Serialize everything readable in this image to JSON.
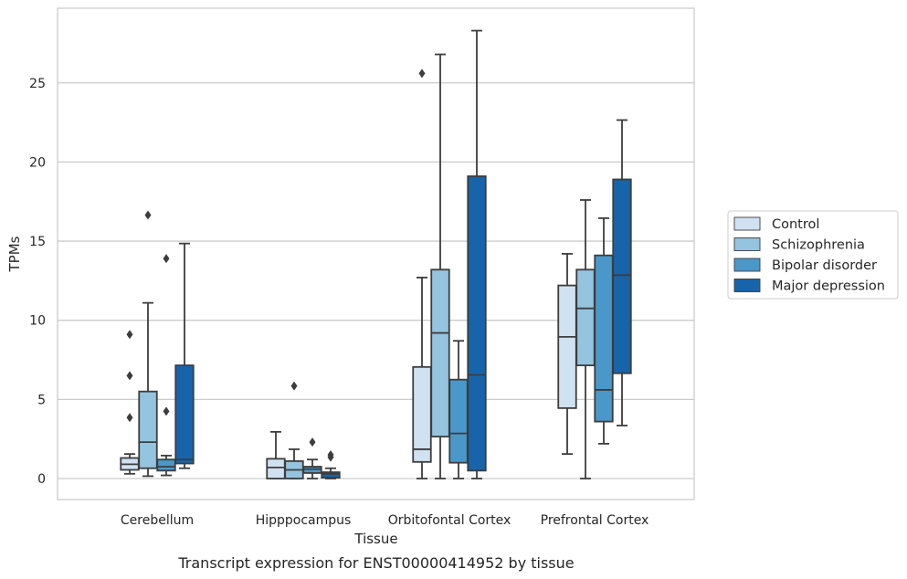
{
  "chart_data": {
    "type": "box",
    "caption": "Transcript expression for ENST00000414952 by tissue",
    "xlabel": "Tissue",
    "ylabel": "TPMs",
    "ylim": [
      -1.4,
      29.4
    ],
    "yticks": [
      0,
      5,
      10,
      15,
      20,
      25
    ],
    "grid": "horizontal",
    "legend_position": "right",
    "categories": [
      "Cerebellum",
      "Hipppocampus",
      "Orbitofontal Cortex",
      "Prefrontal Cortex"
    ],
    "series": [
      {
        "name": "Control",
        "color": "#d0e1f2",
        "boxes": [
          {
            "whisker_low": 0.3,
            "q1": 0.55,
            "median": 0.9,
            "q3": 1.3,
            "whisker_high": 1.55,
            "outliers": [
              9.1,
              6.5,
              3.85
            ]
          },
          {
            "whisker_low": 0.0,
            "q1": 0.0,
            "median": 0.7,
            "q3": 1.25,
            "whisker_high": 2.95,
            "outliers": []
          },
          {
            "whisker_low": 0.0,
            "q1": 1.05,
            "median": 1.85,
            "q3": 7.05,
            "whisker_high": 12.7,
            "outliers": [
              25.6
            ]
          },
          {
            "whisker_low": 1.55,
            "q1": 4.45,
            "median": 8.95,
            "q3": 12.2,
            "whisker_high": 14.2,
            "outliers": []
          }
        ]
      },
      {
        "name": "Schizophrenia",
        "color": "#94c4df",
        "boxes": [
          {
            "whisker_low": 0.15,
            "q1": 0.65,
            "median": 2.3,
            "q3": 5.5,
            "whisker_high": 11.1,
            "outliers": [
              16.65
            ]
          },
          {
            "whisker_low": 0.0,
            "q1": 0.0,
            "median": 0.55,
            "q3": 1.1,
            "whisker_high": 1.85,
            "outliers": [
              5.85
            ]
          },
          {
            "whisker_low": 0.0,
            "q1": 2.65,
            "median": 9.2,
            "q3": 13.2,
            "whisker_high": 26.8,
            "outliers": []
          },
          {
            "whisker_low": 0.0,
            "q1": 7.15,
            "median": 10.75,
            "q3": 13.2,
            "whisker_high": 17.6,
            "outliers": []
          }
        ]
      },
      {
        "name": "Bipolar disorder",
        "color": "#4a98c9",
        "boxes": [
          {
            "whisker_low": 0.2,
            "q1": 0.5,
            "median": 0.75,
            "q3": 1.2,
            "whisker_high": 1.45,
            "outliers": [
              13.9,
              4.25
            ]
          },
          {
            "whisker_low": 0.0,
            "q1": 0.35,
            "median": 0.6,
            "q3": 0.75,
            "whisker_high": 1.2,
            "outliers": [
              2.3
            ]
          },
          {
            "whisker_low": 0.0,
            "q1": 1.0,
            "median": 2.85,
            "q3": 6.25,
            "whisker_high": 8.7,
            "outliers": []
          },
          {
            "whisker_low": 2.2,
            "q1": 3.6,
            "median": 5.6,
            "q3": 14.1,
            "whisker_high": 16.45,
            "outliers": []
          }
        ]
      },
      {
        "name": "Major depression",
        "color": "#1764ab",
        "boxes": [
          {
            "whisker_low": 0.65,
            "q1": 0.95,
            "median": 1.2,
            "q3": 7.15,
            "whisker_high": 14.85,
            "outliers": []
          },
          {
            "whisker_low": 0.0,
            "q1": 0.05,
            "median": 0.3,
            "q3": 0.4,
            "whisker_high": 0.65,
            "outliers": [
              1.5,
              1.35
            ]
          },
          {
            "whisker_low": 0.0,
            "q1": 0.5,
            "median": 6.55,
            "q3": 19.1,
            "whisker_high": 28.3,
            "outliers": []
          },
          {
            "whisker_low": 3.35,
            "q1": 6.65,
            "median": 12.85,
            "q3": 18.9,
            "whisker_high": 22.65,
            "outliers": []
          }
        ]
      }
    ]
  }
}
